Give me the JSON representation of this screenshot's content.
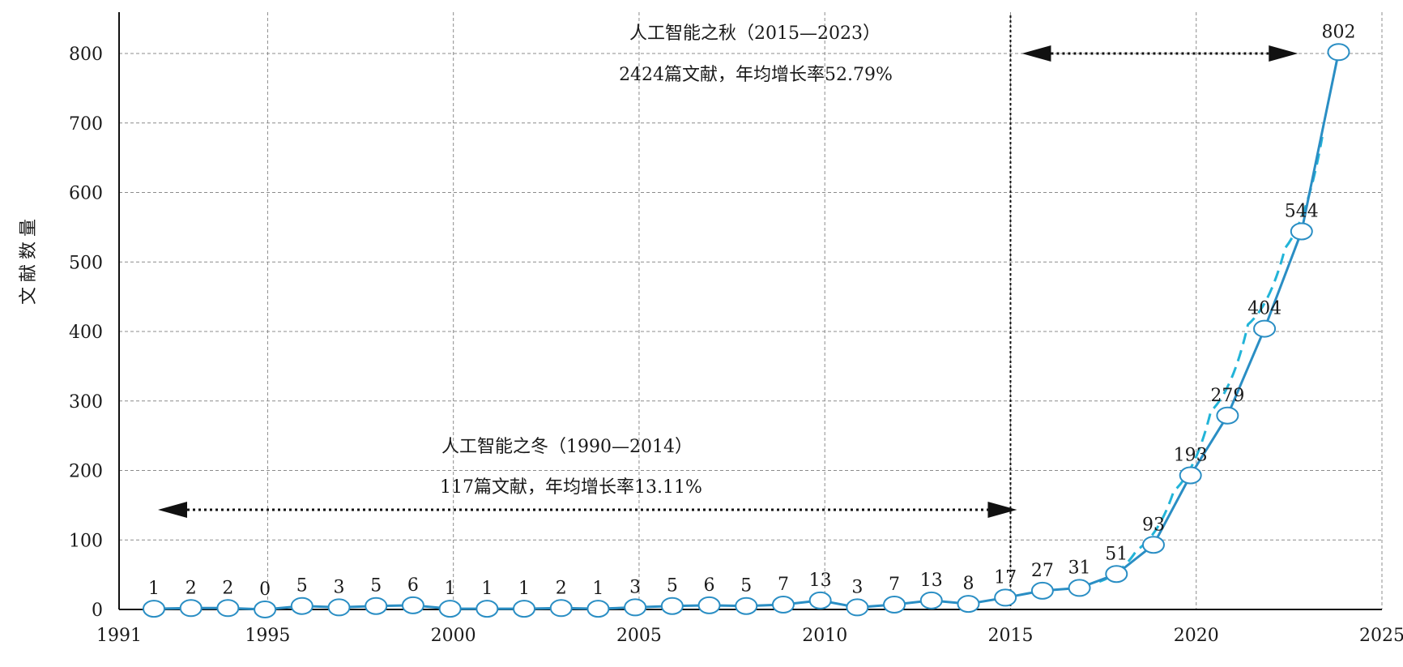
{
  "chart_data": {
    "type": "line",
    "title": "",
    "xlabel": "",
    "ylabel": "文献数量",
    "xlim": [
      1991,
      2025
    ],
    "ylim": [
      0,
      800
    ],
    "x_ticks": [
      1991,
      1995,
      2000,
      2005,
      2010,
      2015,
      2020,
      2025
    ],
    "y_ticks": [
      0,
      100,
      200,
      300,
      400,
      500,
      600,
      700,
      800
    ],
    "grid": true,
    "legend": "none",
    "colors": {
      "series": "#2a8ec4",
      "trend": "#22b4d8",
      "axis": "#111111",
      "grid": "#8c8c8c"
    },
    "series": [
      {
        "x": [
          1991,
          1992,
          1993,
          1994,
          1995,
          1996,
          1997,
          1998,
          1999,
          2000,
          2001,
          2002,
          2003,
          2004,
          2005,
          2006,
          2007,
          2008,
          2009,
          2010,
          2011,
          2012,
          2013,
          2014,
          2015,
          2016,
          2017,
          2018,
          2019,
          2020,
          2021,
          2022,
          2023
        ],
        "values": [
          1,
          2,
          2,
          0,
          5,
          3,
          5,
          6,
          1,
          1,
          1,
          2,
          1,
          3,
          5,
          6,
          5,
          7,
          13,
          3,
          7,
          13,
          8,
          17,
          27,
          31,
          51,
          93,
          193,
          279,
          404,
          544,
          802
        ],
        "data_labels": [
          "1",
          "2",
          "2",
          "0",
          "5",
          "3",
          "5",
          "6",
          "1",
          "1",
          "1",
          "2",
          "1",
          "3",
          "5",
          "6",
          "5",
          "7",
          "13",
          "3",
          "7",
          "13",
          "8",
          "17",
          "27",
          "31",
          "51",
          "93",
          "193",
          "279",
          "404",
          "544",
          "802"
        ]
      }
    ],
    "trend": {
      "style": "dashed",
      "x": [
        2017,
        2018,
        2019,
        2020,
        2021,
        2022,
        2023
      ],
      "values": [
        40,
        85,
        170,
        285,
        410,
        520,
        680
      ]
    },
    "annotations": {
      "winter": {
        "line1": "人工智能之冬（1990—2014）",
        "line2": "117篇文献，年均增长率13.11%",
        "arrow_from": 1991,
        "arrow_to": 2015
      },
      "autumn": {
        "line1": "人工智能之秋（2015—2023）",
        "line2": "2424篇文献，年均增长率52.79%",
        "arrow_from": 2015,
        "arrow_to": 2023
      },
      "divider_x": 2015
    }
  }
}
